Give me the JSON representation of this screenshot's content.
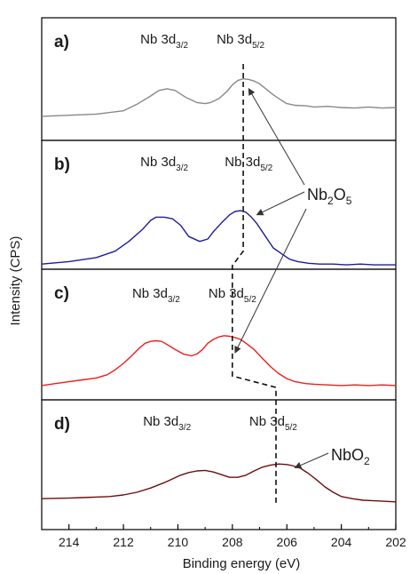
{
  "chart_data": {
    "type": "line",
    "xlabel": "Binding energy (eV)",
    "ylabel": "Intensity (CPS)",
    "xlim": [
      215,
      202
    ],
    "x_reversed": true,
    "x_ticks": [
      214,
      212,
      210,
      208,
      206,
      204,
      202
    ],
    "y_ticks_shown": false,
    "grid": false,
    "legend": "none",
    "panels": [
      {
        "id": "a",
        "label": "a)",
        "color": "#888888",
        "peak_labels": [
          {
            "base": "Nb 3d",
            "sub": "3/2",
            "x": 210.5
          },
          {
            "base": "Nb 3d",
            "sub": "5/2",
            "x": 207.7
          }
        ],
        "x": [
          215,
          214,
          213,
          212,
          211.5,
          211,
          210.7,
          210.4,
          210.1,
          209.7,
          209.3,
          209,
          208.8,
          208.5,
          208.2,
          208,
          207.8,
          207.6,
          207.4,
          207.2,
          207,
          206.8,
          206.5,
          206.2,
          206,
          205.7,
          205.3,
          205,
          204.5,
          204,
          203.5,
          203,
          202.5,
          202
        ],
        "y": [
          0.05,
          0.07,
          0.09,
          0.15,
          0.27,
          0.42,
          0.52,
          0.55,
          0.52,
          0.39,
          0.3,
          0.28,
          0.3,
          0.37,
          0.5,
          0.62,
          0.7,
          0.73,
          0.72,
          0.69,
          0.64,
          0.56,
          0.44,
          0.34,
          0.28,
          0.25,
          0.24,
          0.22,
          0.23,
          0.21,
          0.2,
          0.22,
          0.2,
          0.21
        ]
      },
      {
        "id": "b",
        "label": "b)",
        "color": "#1c1c9c",
        "peak_labels": [
          {
            "base": "Nb 3d",
            "sub": "3/2",
            "x": 210.5
          },
          {
            "base": "Nb 3d",
            "sub": "5/2",
            "x": 207.4
          }
        ],
        "x": [
          215,
          214,
          213,
          212.3,
          211.8,
          211.3,
          211,
          210.8,
          210.5,
          210.2,
          209.9,
          209.6,
          209.2,
          208.9,
          208.7,
          208.4,
          208.1,
          207.9,
          207.7,
          207.5,
          207.3,
          207.1,
          206.9,
          206.7,
          206.5,
          206.2,
          205.9,
          205.6,
          205.2,
          204.8,
          204.3,
          203.8,
          203.3,
          202.8,
          202
        ],
        "y": [
          0.02,
          0.05,
          0.1,
          0.18,
          0.3,
          0.45,
          0.56,
          0.6,
          0.6,
          0.58,
          0.5,
          0.36,
          0.3,
          0.33,
          0.42,
          0.53,
          0.63,
          0.67,
          0.68,
          0.66,
          0.6,
          0.52,
          0.42,
          0.32,
          0.22,
          0.15,
          0.08,
          0.05,
          0.03,
          0.02,
          0.02,
          0.01,
          0.02,
          0.01,
          0.01
        ]
      },
      {
        "id": "c",
        "label": "c)",
        "color": "#ee1c1c",
        "peak_labels": [
          {
            "base": "Nb 3d",
            "sub": "3/2",
            "x": 210.8
          },
          {
            "base": "Nb 3d",
            "sub": "5/2",
            "x": 208.0
          }
        ],
        "x": [
          215,
          214.5,
          214,
          213.5,
          213,
          212.6,
          212.3,
          212,
          211.7,
          211.4,
          211.2,
          211,
          210.8,
          210.6,
          210.4,
          210.1,
          209.8,
          209.5,
          209.3,
          209.1,
          208.9,
          208.7,
          208.5,
          208.3,
          208.1,
          207.9,
          207.7,
          207.5,
          207.2,
          206.9,
          206.6,
          206.3,
          206,
          205.7,
          205.3,
          205,
          204.5,
          204,
          203.5,
          203,
          202.5,
          202
        ],
        "y": [
          0.03,
          0.06,
          0.09,
          0.12,
          0.15,
          0.2,
          0.28,
          0.38,
          0.5,
          0.63,
          0.7,
          0.73,
          0.74,
          0.73,
          0.68,
          0.6,
          0.53,
          0.5,
          0.53,
          0.6,
          0.7,
          0.76,
          0.8,
          0.82,
          0.81,
          0.79,
          0.76,
          0.7,
          0.6,
          0.46,
          0.33,
          0.22,
          0.14,
          0.09,
          0.06,
          0.05,
          0.04,
          0.03,
          0.04,
          0.03,
          0.04,
          0.03
        ]
      },
      {
        "id": "d",
        "label": "d)",
        "color": "#6b0f0f",
        "peak_labels": [
          {
            "base": "Nb 3d",
            "sub": "3/2",
            "x": 210.4
          },
          {
            "base": "Nb 3d",
            "sub": "5/2",
            "x": 206.5
          }
        ],
        "x": [
          215,
          214,
          213.5,
          213,
          212.5,
          212,
          211.5,
          211,
          210.5,
          210.2,
          209.9,
          209.6,
          209.3,
          209,
          208.7,
          208.4,
          208.1,
          207.8,
          207.5,
          207.2,
          206.9,
          206.6,
          206.3,
          206,
          205.8,
          205.5,
          205.2,
          204.9,
          204.6,
          204.3,
          204,
          203.6,
          203.2,
          202.8,
          202.4,
          202
        ],
        "y": [
          0.08,
          0.09,
          0.1,
          0.11,
          0.12,
          0.15,
          0.2,
          0.28,
          0.38,
          0.45,
          0.52,
          0.57,
          0.6,
          0.61,
          0.58,
          0.53,
          0.48,
          0.48,
          0.52,
          0.6,
          0.67,
          0.71,
          0.73,
          0.72,
          0.7,
          0.65,
          0.55,
          0.43,
          0.3,
          0.2,
          0.12,
          0.08,
          0.05,
          0.04,
          0.03,
          0.02
        ]
      }
    ],
    "reference_line": {
      "style": "dashed",
      "points": [
        [
          207.6,
          1.0,
          "a"
        ],
        [
          207.6,
          0.18,
          "b"
        ],
        [
          208.0,
          0.0,
          "b"
        ],
        [
          208.0,
          0.62,
          "c"
        ],
        [
          208.0,
          0.18,
          "c"
        ],
        [
          206.4,
          0.0,
          "c"
        ],
        [
          206.4,
          0.0,
          "d"
        ]
      ]
    },
    "annotations": [
      {
        "base": "Nb",
        "sub": "2",
        "mid": "O",
        "sub2": "5",
        "targets": [
          "a",
          "b",
          "c"
        ]
      },
      {
        "base": "NbO",
        "sub": "2",
        "mid": "",
        "sub2": "",
        "targets": [
          "d"
        ]
      }
    ]
  }
}
